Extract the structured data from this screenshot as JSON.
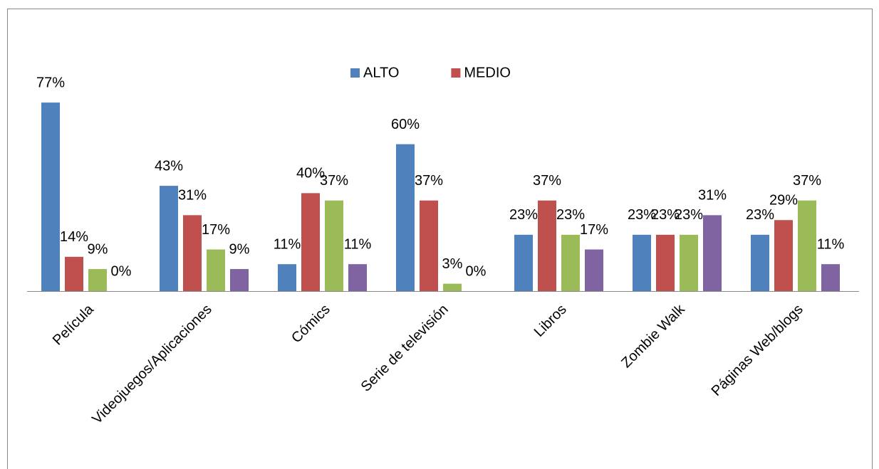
{
  "chart_data": {
    "type": "bar",
    "categories": [
      "Película",
      "Videojuegos/Aplicaciones",
      "Cómics",
      "Serie de televisión",
      "Libros",
      "Zombie Walk",
      "Páginas Web/blogs"
    ],
    "series": [
      {
        "name": "ALTO",
        "color": "#4f81bd",
        "values": [
          77,
          43,
          11,
          60,
          23,
          23,
          23
        ],
        "value_labels": [
          "77%",
          "43%",
          "11%",
          "60%",
          "23%",
          "23%",
          "23%"
        ]
      },
      {
        "name": "MEDIO",
        "color": "#c0504d",
        "values": [
          14,
          31,
          40,
          37,
          37,
          23,
          29
        ],
        "value_labels": [
          "14%",
          "31%",
          "40%",
          "37%",
          "37%",
          "23%",
          "29%"
        ]
      },
      {
        "color": "#9bbb59",
        "values": [
          9,
          17,
          37,
          3,
          23,
          23,
          37
        ],
        "value_labels": [
          "9%",
          "17%",
          "37%",
          "3%",
          "23%",
          "23%",
          "37%"
        ]
      },
      {
        "color": "#8064a2",
        "values": [
          0,
          9,
          11,
          0,
          17,
          31,
          11
        ],
        "value_labels": [
          "0%",
          "9%",
          "11%",
          "0%",
          "17%",
          "31%",
          "11%"
        ]
      }
    ],
    "legend": "top"
  }
}
